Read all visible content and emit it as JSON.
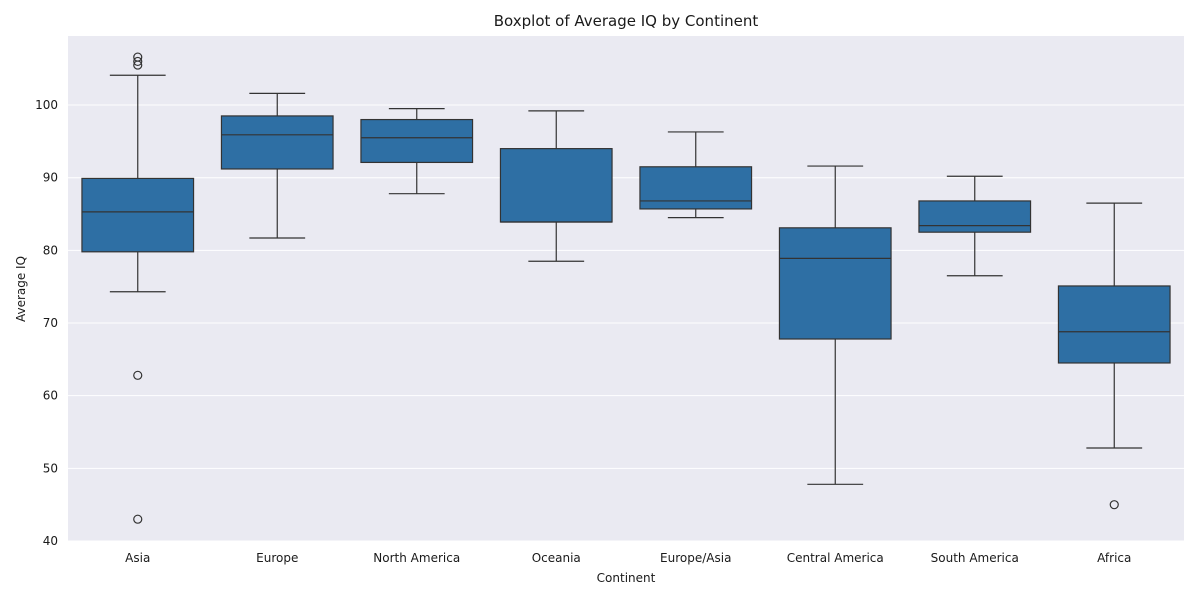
{
  "chart_data": {
    "type": "boxplot",
    "title": "Boxplot of Average IQ by Continent",
    "xlabel": "Continent",
    "ylabel": "Average IQ",
    "ylim": [
      40,
      109.5
    ],
    "yticks": [
      40,
      50,
      60,
      70,
      80,
      90,
      100
    ],
    "grid": true,
    "colors": {
      "box": "#2e6fa4",
      "line": "#333333",
      "plot_bg": "#eaeaf2",
      "grid": "#ffffff"
    },
    "categories": [
      "Asia",
      "Europe",
      "North America",
      "Oceania",
      "Europe/Asia",
      "Central America",
      "South America",
      "Africa"
    ],
    "boxes": [
      {
        "category": "Asia",
        "whisker_low": 74.3,
        "q1": 79.8,
        "median": 85.3,
        "q3": 89.9,
        "whisker_high": 104.1,
        "outliers": [
          106.6,
          106.0,
          105.5,
          62.8,
          43.0
        ]
      },
      {
        "category": "Europe",
        "whisker_low": 81.7,
        "q1": 91.2,
        "median": 95.9,
        "q3": 98.5,
        "whisker_high": 101.6,
        "outliers": []
      },
      {
        "category": "North America",
        "whisker_low": 87.8,
        "q1": 92.1,
        "median": 95.5,
        "q3": 98.0,
        "whisker_high": 99.5,
        "outliers": []
      },
      {
        "category": "Oceania",
        "whisker_low": 78.5,
        "q1": 83.9,
        "median": 83.9,
        "q3": 94.0,
        "whisker_high": 99.2,
        "outliers": []
      },
      {
        "category": "Europe/Asia",
        "whisker_low": 84.5,
        "q1": 85.7,
        "median": 86.8,
        "q3": 91.5,
        "whisker_high": 96.3,
        "outliers": []
      },
      {
        "category": "Central America",
        "whisker_low": 47.8,
        "q1": 67.8,
        "median": 78.9,
        "q3": 83.1,
        "whisker_high": 91.6,
        "outliers": []
      },
      {
        "category": "South America",
        "whisker_low": 76.5,
        "q1": 82.5,
        "median": 83.4,
        "q3": 86.8,
        "whisker_high": 90.2,
        "outliers": []
      },
      {
        "category": "Africa",
        "whisker_low": 52.8,
        "q1": 64.5,
        "median": 68.8,
        "q3": 75.1,
        "whisker_high": 86.5,
        "outliers": [
          45.0
        ]
      }
    ]
  }
}
